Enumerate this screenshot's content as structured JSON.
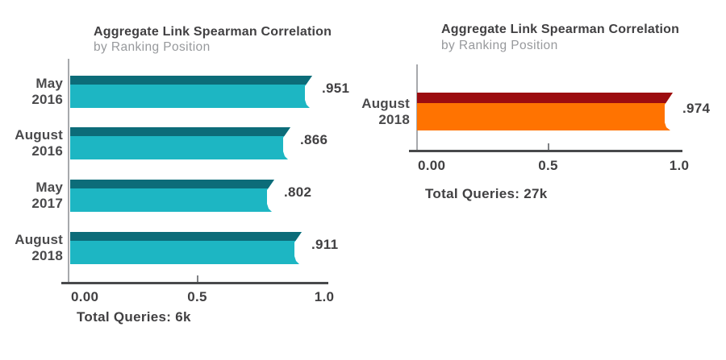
{
  "colors": {
    "background": "#ffffff",
    "text_dark": "#414042",
    "text_gray": "#97999c",
    "axis_line": "#48494b",
    "baseline": "#a7a9ac",
    "teal": "#1db6c3",
    "teal_dark": "#0c6c79",
    "orange": "#ff7301",
    "red_dark": "#9c0c10"
  },
  "chart_data": [
    {
      "type": "bar",
      "orientation": "horizontal",
      "title": "Aggregate Link Spearman Correlation",
      "subtitle": "by Ranking Position",
      "categories": [
        "May 2016",
        "August 2016",
        "May 2017",
        "August 2018"
      ],
      "values": [
        0.951,
        0.866,
        0.802,
        0.911
      ],
      "value_labels": [
        ".951",
        ".866",
        ".802",
        ".911"
      ],
      "x_ticks": [
        "0.00",
        "0.5",
        "1.0"
      ],
      "x_tick_values": [
        0,
        0.5,
        1.0
      ],
      "xlim": [
        0,
        1.0
      ],
      "xlabel": "",
      "ylabel": "",
      "grid": false,
      "legend": "none",
      "footer": "Total Queries: 6k",
      "bar_color": "#1db6c3",
      "bar_top_color": "#0c6c79"
    },
    {
      "type": "bar",
      "orientation": "horizontal",
      "title": "Aggregate Link Spearman Correlation",
      "subtitle": "by Ranking Position",
      "categories": [
        "August 2018"
      ],
      "values": [
        0.974
      ],
      "value_labels": [
        ".974"
      ],
      "x_ticks": [
        "0.00",
        "0.5",
        "1.0"
      ],
      "x_tick_values": [
        0,
        0.5,
        1.0
      ],
      "xlim": [
        0,
        1.0
      ],
      "xlabel": "",
      "ylabel": "",
      "grid": false,
      "legend": "none",
      "footer": "Total Queries: 27k",
      "bar_color": "#ff7301",
      "bar_top_color": "#9c0c10"
    }
  ]
}
